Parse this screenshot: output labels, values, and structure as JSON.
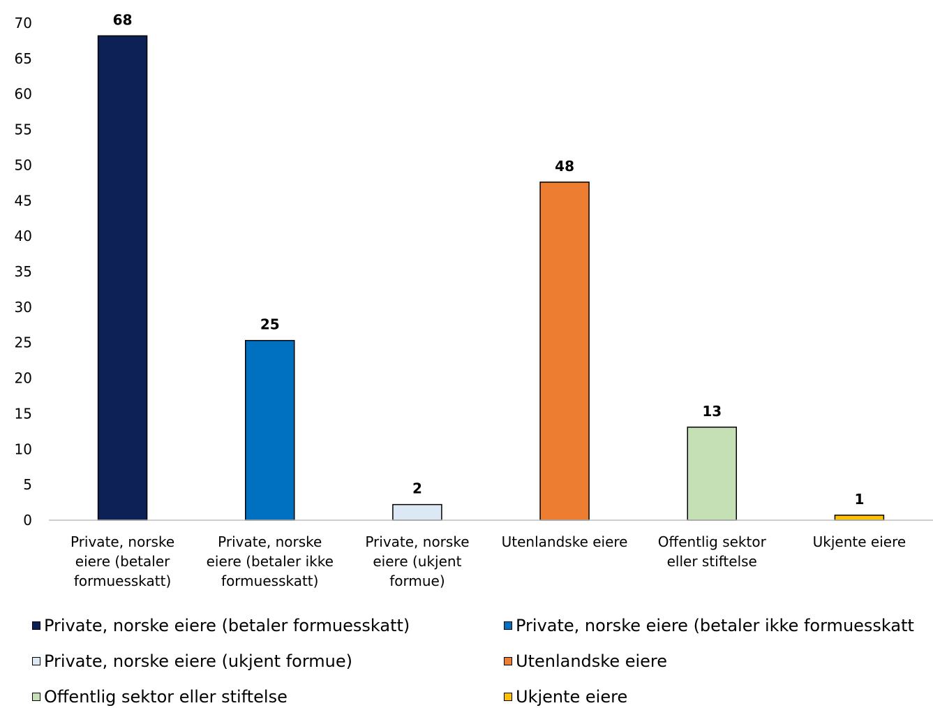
{
  "chart_data": {
    "type": "bar",
    "title": "",
    "xlabel": "",
    "ylabel": "",
    "ylim": [
      0,
      70
    ],
    "yticks": [
      0,
      5,
      10,
      15,
      20,
      25,
      30,
      35,
      40,
      45,
      50,
      55,
      60,
      65,
      70
    ],
    "grid": false,
    "legend_position": "bottom",
    "categories": [
      "Private, norske eiere (betaler formuesskatt)",
      "Private, norske eiere (betaler ikke formuesskatt)",
      "Private, norske eiere (ukjent formue)",
      "Utenlandske eiere",
      "Offentlig sektor eller stiftelse",
      "Ukjente eiere"
    ],
    "category_label_lines": [
      [
        "Private, norske",
        "eiere (betaler",
        "formuesskatt)"
      ],
      [
        "Private, norske",
        "eiere (betaler ikke",
        "formuesskatt)"
      ],
      [
        "Private, norske",
        "eiere (ukjent",
        "formue)"
      ],
      [
        "Utenlandske eiere"
      ],
      [
        "Offentlig sektor",
        "eller stiftelse"
      ],
      [
        "Ukjente eiere"
      ]
    ],
    "values": [
      68.2,
      25.3,
      2.2,
      47.6,
      13.1,
      0.7
    ],
    "data_labels": [
      "68",
      "25",
      "2",
      "48",
      "13",
      "1"
    ],
    "colors": [
      "#0d2157",
      "#0070c0",
      "#dce8f4",
      "#ed7d31",
      "#c5e0b4",
      "#ffc000"
    ]
  },
  "legend": {
    "items": [
      "Private, norske eiere (betaler formuesskatt)",
      "Private, norske eiere (betaler ikke formuesskatt",
      "Private, norske eiere (ukjent formue)",
      "Utenlandske eiere",
      "Offentlig sektor eller stiftelse",
      "Ukjente eiere"
    ]
  }
}
